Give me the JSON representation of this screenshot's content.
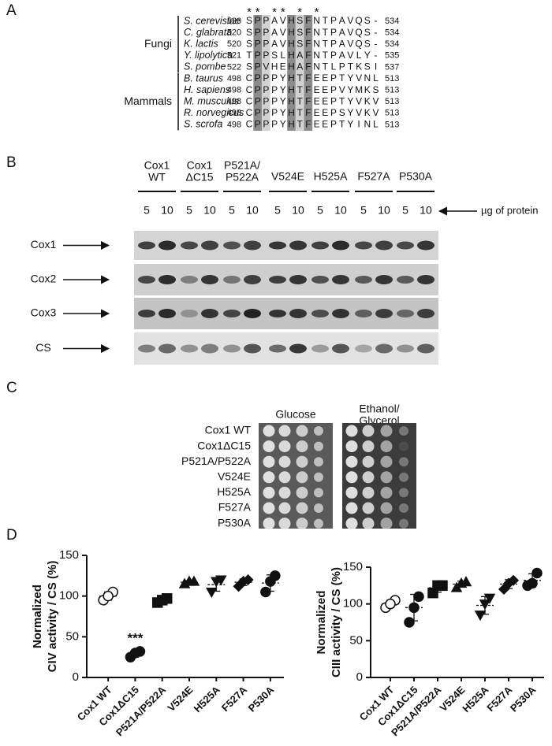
{
  "panel_a": {
    "label": "A",
    "asterisks": " ** ** *  *",
    "groups": [
      {
        "name": "Fungi",
        "rows": [
          {
            "species": "S. cerevisiae",
            "start": 520,
            "sequence": "SPPAVHSFNTPAVQS-",
            "end": 534
          },
          {
            "species": "C. glabrata",
            "start": 520,
            "sequence": "SPPAVHSFNTPAVQS-",
            "end": 534
          },
          {
            "species": "K. lactis",
            "start": 520,
            "sequence": "SPPAVHSFNTPAVQS-",
            "end": 534
          },
          {
            "species": "Y. lipolytica",
            "start": 521,
            "sequence": "TPPSLHAFNTPAVLY-",
            "end": 535
          },
          {
            "species": "S. pombe",
            "start": 522,
            "sequence": "SPVHEHAFNTLPTKSI",
            "end": 537
          }
        ]
      },
      {
        "name": "Mammals",
        "rows": [
          {
            "species": "B. taurus",
            "start": 498,
            "sequence": "CPPPYHTFEEPTYVNL",
            "end": 513
          },
          {
            "species": "H. sapiens",
            "start": 498,
            "sequence": "CPPPYHTFEEPVYMKS",
            "end": 513
          },
          {
            "species": "M. musculus",
            "start": 498,
            "sequence": "CPPPYHTFEEPTYVKV",
            "end": 513
          },
          {
            "species": "R. norvegicus",
            "start": 498,
            "sequence": "CPPPYHTFEEPSYVKV",
            "end": 513
          },
          {
            "species": "S. scrofa",
            "start": 498,
            "sequence": "CPPPYHTFEEPTYINL",
            "end": 513
          }
        ]
      }
    ]
  },
  "panel_b": {
    "label": "B",
    "lanes": [
      [
        "Cox1",
        "WT"
      ],
      [
        "Cox1",
        "ΔC15"
      ],
      [
        "P521A/",
        "P522A"
      ],
      [
        "V524E"
      ],
      [
        "H525A"
      ],
      [
        "F527A"
      ],
      [
        "P530A"
      ]
    ],
    "amounts": [
      5,
      10
    ],
    "amount_label": "µg of protein",
    "rows": [
      "Cox1",
      "Cox2",
      "Cox3",
      "CS"
    ]
  },
  "panel_c": {
    "label": "C",
    "media": [
      [
        "Glucose"
      ],
      [
        "Ethanol/",
        "Glycerol"
      ]
    ],
    "strains": [
      "Cox1 WT",
      "Cox1ΔC15",
      "P521A/P522A",
      "V524E",
      "H525A",
      "F527A",
      "P530A"
    ]
  },
  "panel_d": {
    "label": "D"
  },
  "chart_data": [
    {
      "type": "dot",
      "categories": [
        "Cox1 WT",
        "Cox1ΔC15",
        "P521A/P522A",
        "V524E",
        "H525A",
        "F527A",
        "P530A"
      ],
      "ylabel": [
        "Normalized",
        "CIV activity / CS (%)"
      ],
      "ylim": [
        0,
        150
      ],
      "yticks": [
        0,
        50,
        100,
        150
      ],
      "markers": [
        "circle-open",
        "circle",
        "square",
        "triangle",
        "triangle-down",
        "diamond",
        "circle"
      ],
      "values": [
        [
          95,
          105,
          100
        ],
        [
          25,
          32,
          30
        ],
        [
          92,
          97,
          95
        ],
        [
          115,
          118,
          118
        ],
        [
          105,
          120,
          118
        ],
        [
          112,
          120,
          118
        ],
        [
          105,
          125,
          118
        ]
      ],
      "means": [
        100,
        29,
        95,
        117,
        114,
        117,
        116
      ],
      "sd": [
        5,
        4,
        3,
        2,
        8,
        4,
        10
      ],
      "annotations": [
        {
          "text": "***",
          "category": "Cox1ΔC15"
        }
      ]
    },
    {
      "type": "dot",
      "categories": [
        "Cox1 WT",
        "Cox1ΔC15",
        "P521A/P522A",
        "V524E",
        "H525A",
        "F527A",
        "P530A"
      ],
      "ylabel": [
        "Normalized",
        "CIII activity / CS (%)"
      ],
      "ylim": [
        0,
        150
      ],
      "yticks": [
        0,
        50,
        100,
        150
      ],
      "markers": [
        "circle-open",
        "circle",
        "square",
        "triangle",
        "triangle-down",
        "diamond",
        "circle"
      ],
      "values": [
        [
          95,
          105,
          100
        ],
        [
          75,
          110,
          95
        ],
        [
          115,
          125,
          125
        ],
        [
          122,
          130,
          128
        ],
        [
          85,
          108,
          100
        ],
        [
          120,
          132,
          128
        ],
        [
          125,
          142,
          128
        ]
      ],
      "means": [
        100,
        95,
        122,
        127,
        98,
        127,
        132
      ],
      "sd": [
        5,
        18,
        6,
        4,
        12,
        6,
        9
      ]
    }
  ]
}
